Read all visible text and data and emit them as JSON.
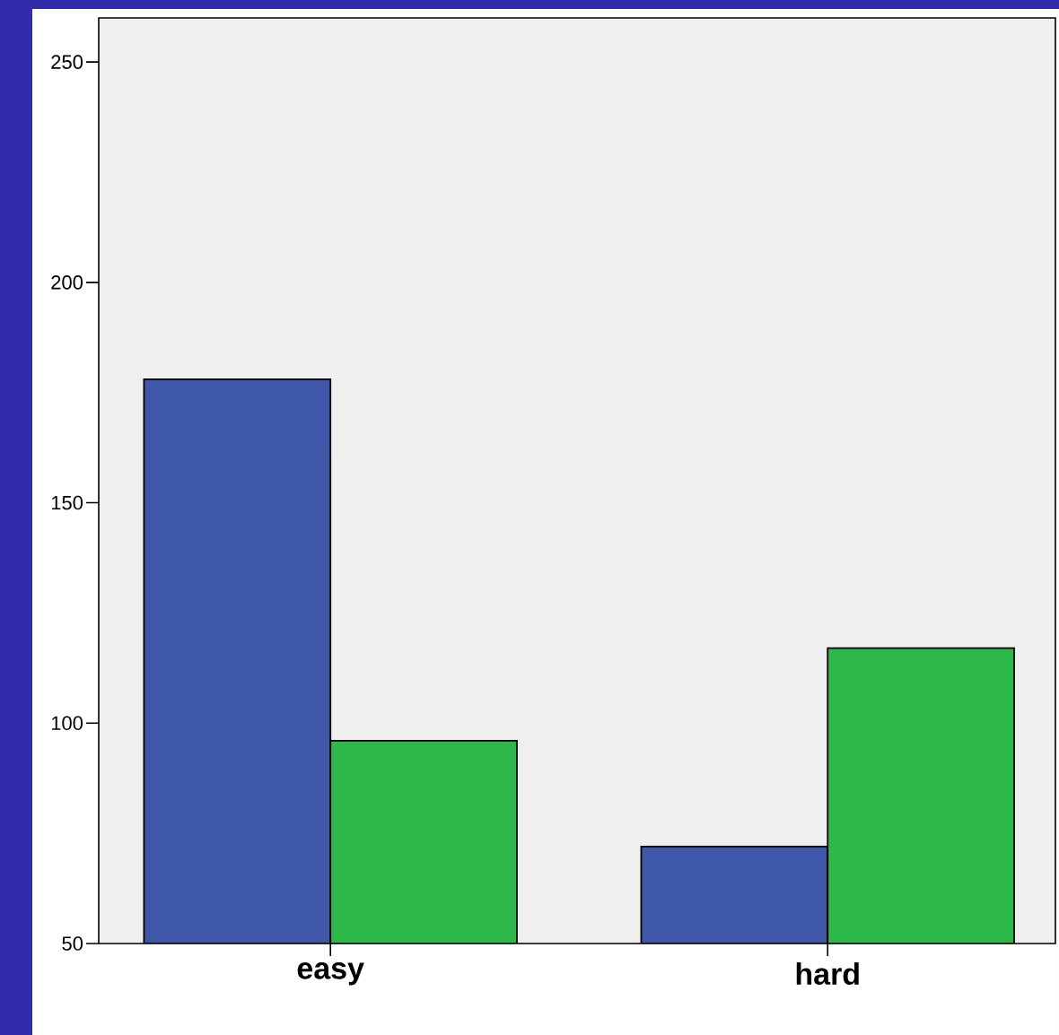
{
  "chart_data": {
    "type": "bar",
    "categories": [
      "easy",
      "hard"
    ],
    "series": [
      {
        "color": "#3f57a9",
        "values": [
          178,
          72
        ]
      },
      {
        "color": "#2db84a",
        "values": [
          96,
          117
        ]
      }
    ],
    "ylim": [
      50,
      260
    ],
    "yticks": [
      50,
      100,
      150,
      200,
      250
    ]
  }
}
